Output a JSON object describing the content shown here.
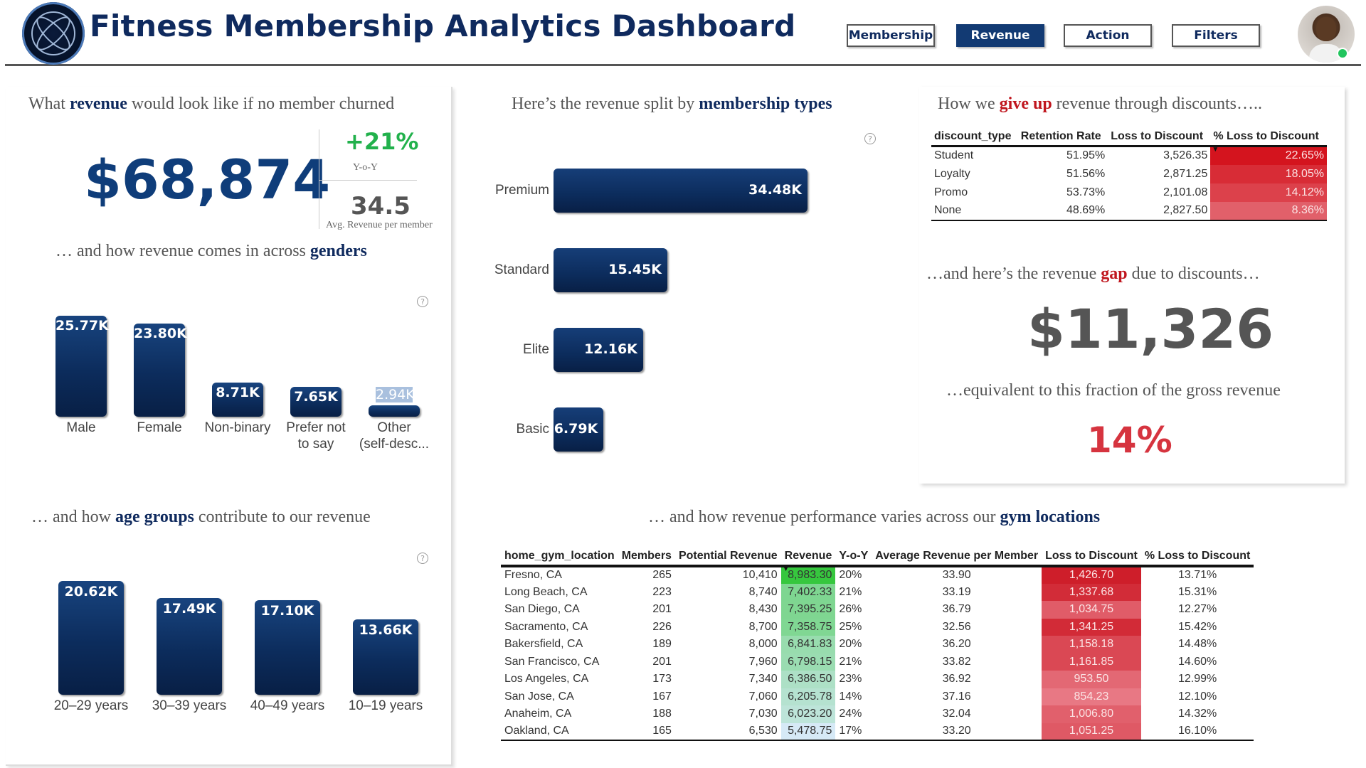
{
  "header": {
    "title": "Fitness Membership Analytics Dashboard",
    "nav": [
      {
        "label": "Membership",
        "active": false
      },
      {
        "label": "Revenue",
        "active": true
      },
      {
        "label": "Action",
        "active": false
      },
      {
        "label": "Filters",
        "active": false
      }
    ]
  },
  "revenue_no_churn": {
    "title_pre": "What ",
    "title_em": "revenue",
    "title_post": " would look like if no member churned",
    "value": "$68,874",
    "yoy_value": "+21%",
    "yoy_label": "Y-o-Y",
    "avg_value": "34.5",
    "avg_label": "Avg. Revenue per member"
  },
  "genders": {
    "title_pre": "… and how revenue comes in across ",
    "title_em": "genders",
    "bars": [
      {
        "label_lines": [
          "Male"
        ],
        "value": 25.77,
        "display": "25.77K"
      },
      {
        "label_lines": [
          "Female"
        ],
        "value": 23.8,
        "display": "23.80K"
      },
      {
        "label_lines": [
          "Non-binary"
        ],
        "value": 8.71,
        "display": "8.71K"
      },
      {
        "label_lines": [
          "Prefer not",
          "to say"
        ],
        "value": 7.65,
        "display": "7.65K"
      },
      {
        "label_lines": [
          "Other",
          "(self-desc..."
        ],
        "value": 2.94,
        "display": "2.94K"
      }
    ]
  },
  "age_groups": {
    "title_pre": "… and how ",
    "title_em": "age groups",
    "title_post": " contribute to our revenue",
    "bars": [
      {
        "label": "20–29 years",
        "value": 20.62,
        "display": "20.62K"
      },
      {
        "label": "30–39 years",
        "value": 17.49,
        "display": "17.49K"
      },
      {
        "label": "40–49 years",
        "value": 17.1,
        "display": "17.10K"
      },
      {
        "label": "10–19 years",
        "value": 13.66,
        "display": "13.66K"
      }
    ]
  },
  "membership_types": {
    "title_pre": "Here’s the revenue split by  ",
    "title_em": "membership types",
    "bars": [
      {
        "label": "Premium",
        "value": 34.48,
        "display": "34.48K"
      },
      {
        "label": "Standard",
        "value": 15.45,
        "display": "15.45K"
      },
      {
        "label": "Elite",
        "value": 12.16,
        "display": "12.16K"
      },
      {
        "label": "Basic",
        "value": 6.79,
        "display": "6.79K"
      }
    ]
  },
  "discounts": {
    "title_pre": "How we ",
    "title_em": "give up",
    "title_post": " revenue through discounts…..",
    "columns": [
      "discount_type",
      "Retention Rate",
      "Loss to Discount",
      "% Loss to Discount"
    ],
    "rows": [
      {
        "type": "Student",
        "retention": "51.95%",
        "loss": "3,526.35",
        "pct": "22.65%",
        "pct_value": 22.65
      },
      {
        "type": "Loyalty",
        "retention": "51.56%",
        "loss": "2,871.25",
        "pct": "18.05%",
        "pct_value": 18.05
      },
      {
        "type": "Promo",
        "retention": "53.73%",
        "loss": "2,101.08",
        "pct": "14.12%",
        "pct_value": 14.12
      },
      {
        "type": "None",
        "retention": "48.69%",
        "loss": "2,827.50",
        "pct": "8.36%",
        "pct_value": 8.36
      }
    ],
    "gap_title_pre": "…and here’s the revenue ",
    "gap_title_em": "gap",
    "gap_title_post": " due to discounts…",
    "gap_value": "$11,326",
    "fraction_title": "…equivalent to this fraction of the gross revenue",
    "fraction_value": "14%"
  },
  "locations": {
    "title_pre": "… and how revenue performance varies across our ",
    "title_em": "gym locations",
    "columns": [
      "home_gym_location",
      "Members",
      "Potential Revenue",
      "Revenue",
      "Y-o-Y",
      "Average Revenue per Member",
      "Loss to Discount",
      "% Loss to Discount"
    ],
    "rows": [
      {
        "location": "Fresno, CA",
        "members": "265",
        "potential": "10,410",
        "revenue": "8,983.30",
        "revenue_value": 8983.3,
        "yoy": "20%",
        "avg": "33.90",
        "loss": "1,426.70",
        "loss_value": 1426.7,
        "pct": "13.71%"
      },
      {
        "location": "Long Beach, CA",
        "members": "223",
        "potential": "8,740",
        "revenue": "7,402.33",
        "revenue_value": 7402.33,
        "yoy": "21%",
        "avg": "33.19",
        "loss": "1,337.68",
        "loss_value": 1337.68,
        "pct": "15.31%"
      },
      {
        "location": "San Diego, CA",
        "members": "201",
        "potential": "8,430",
        "revenue": "7,395.25",
        "revenue_value": 7395.25,
        "yoy": "26%",
        "avg": "36.79",
        "loss": "1,034.75",
        "loss_value": 1034.75,
        "pct": "12.27%"
      },
      {
        "location": "Sacramento, CA",
        "members": "226",
        "potential": "8,700",
        "revenue": "7,358.75",
        "revenue_value": 7358.75,
        "yoy": "25%",
        "avg": "32.56",
        "loss": "1,341.25",
        "loss_value": 1341.25,
        "pct": "15.42%"
      },
      {
        "location": "Bakersfield, CA",
        "members": "189",
        "potential": "8,000",
        "revenue": "6,841.83",
        "revenue_value": 6841.83,
        "yoy": "20%",
        "avg": "36.20",
        "loss": "1,158.18",
        "loss_value": 1158.18,
        "pct": "14.48%"
      },
      {
        "location": "San Francisco, CA",
        "members": "201",
        "potential": "7,960",
        "revenue": "6,798.15",
        "revenue_value": 6798.15,
        "yoy": "21%",
        "avg": "33.82",
        "loss": "1,161.85",
        "loss_value": 1161.85,
        "pct": "14.60%"
      },
      {
        "location": "Los Angeles, CA",
        "members": "173",
        "potential": "7,340",
        "revenue": "6,386.50",
        "revenue_value": 6386.5,
        "yoy": "23%",
        "avg": "36.92",
        "loss": "953.50",
        "loss_value": 953.5,
        "pct": "12.99%"
      },
      {
        "location": "San Jose, CA",
        "members": "167",
        "potential": "7,060",
        "revenue": "6,205.78",
        "revenue_value": 6205.78,
        "yoy": "14%",
        "avg": "37.16",
        "loss": "854.23",
        "loss_value": 854.23,
        "pct": "12.10%"
      },
      {
        "location": "Anaheim, CA",
        "members": "188",
        "potential": "7,030",
        "revenue": "6,023.20",
        "revenue_value": 6023.2,
        "yoy": "24%",
        "avg": "32.04",
        "loss": "1,006.80",
        "loss_value": 1006.8,
        "pct": "14.32%"
      },
      {
        "location": "Oakland, CA",
        "members": "165",
        "potential": "6,530",
        "revenue": "5,478.75",
        "revenue_value": 5478.75,
        "yoy": "17%",
        "avg": "33.20",
        "loss": "1,051.25",
        "loss_value": 1051.25,
        "pct": "16.10%"
      }
    ]
  },
  "colors": {
    "navy": "#0f2a5e",
    "accent_red": "#c0161e",
    "kpi_green": "#22b14c",
    "kpi_red": "#d6343f"
  },
  "icons": {
    "logo": "globe-logo-icon",
    "help": "question-circle-icon",
    "avatar": "user-avatar",
    "status": "online-status-dot"
  }
}
